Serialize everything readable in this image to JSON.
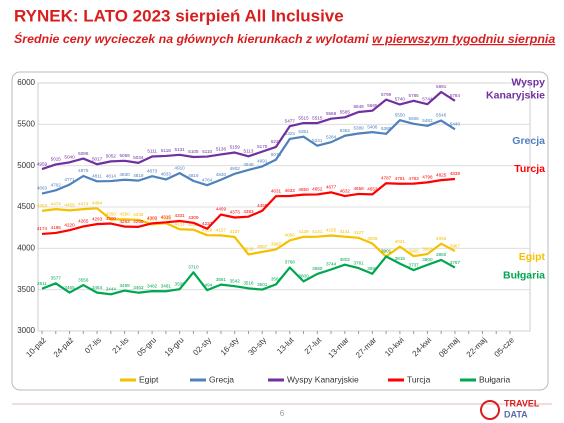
{
  "chart_data": {
    "type": "line",
    "title": "RYNEK: LATO 2023 sierpień All Inclusive",
    "subtitle": "Średnie ceny wycieczek na głównych kierunkach z wylotami ",
    "subtitle_emphasis": "w pierwszym tygodniu sierpnia",
    "categories": [
      "10-paź",
      null,
      "24-paź",
      null,
      "07-lis",
      null,
      "21-lis",
      null,
      "05-gru",
      null,
      "19-gru",
      null,
      "02-sty",
      null,
      "16-sty",
      null,
      "30-sty",
      null,
      "13-lut",
      null,
      "27-lut",
      null,
      "13-mar",
      null,
      "27-mar",
      null,
      "10-kwi",
      null,
      "24-kwi",
      null,
      "08-maj",
      null,
      "22-maj",
      null,
      "05-cze"
    ],
    "series": [
      {
        "name": "Egipt",
        "color": "#f5c000",
        "values": [
          4453,
          4474,
          4459,
          4474,
          4484,
          4350,
          4350,
          4345,
          4291,
          4305,
          4231,
          4225,
          4159,
          4157,
          4137,
          3926,
          3957,
          3987,
          4096,
          4139,
          4141,
          4155,
          4141,
          4127,
          4058,
          3901,
          4021,
          3905,
          3931,
          4056,
          3967,
          null,
          null,
          null,
          null
        ]
      },
      {
        "name": "Grecja",
        "color": "#4f81bd",
        "values": [
          4663,
          4702,
          4771,
          4875,
          4811,
          4814,
          4830,
          4819,
          4873,
          4833,
          4910,
          4816,
          4764,
          4830,
          4902,
          4948,
          4991,
          5073,
          5323,
          5351,
          5241,
          5284,
          5362,
          5389,
          5406,
          5385,
          5550,
          5506,
          5482,
          5546,
          5440,
          null,
          null,
          null,
          null
        ]
      },
      {
        "name": "Wyspy Kanaryjskie",
        "color": "#7030a0",
        "values": [
          4959,
          5015,
          5040,
          5086,
          5017,
          5052,
          5059,
          5034,
          5111,
          5118,
          5131,
          5105,
          5110,
          5136,
          5159,
          5113,
          5170,
          5227,
          5477,
          5515,
          5515,
          5568,
          5585,
          5649,
          5665,
          5799,
          5740,
          5785,
          5744,
          5891,
          5784,
          null,
          null,
          null,
          null
        ]
      },
      {
        "name": "Turcja",
        "color": "#ff0000",
        "values": [
          4174,
          4186,
          4220,
          4265,
          4293,
          4300,
          4263,
          4260,
          4303,
          4315,
          4331,
          4309,
          4237,
          4409,
          4373,
          4383,
          4455,
          4631,
          4633,
          4650,
          4652,
          4677,
          4632,
          4658,
          4653,
          4787,
          4781,
          4783,
          4798,
          4825,
          4839,
          null,
          null,
          null,
          null
        ]
      },
      {
        "name": "Bułgaria",
        "color": "#00a650",
        "values": [
          3511,
          3577,
          3465,
          3556,
          3464,
          3444,
          3489,
          3463,
          3482,
          3481,
          3506,
          3710,
          3494,
          3561,
          3542,
          3516,
          3501,
          3564,
          3768,
          3600,
          3690,
          3744,
          3802,
          3761,
          3693,
          3901,
          3815,
          3737,
          3800,
          3860,
          3767,
          null,
          null,
          null,
          null
        ]
      }
    ],
    "annotations": [
      "Egipt",
      "Grecja",
      "Wyspy",
      "Kanaryjskie",
      "Turcja",
      "Bułgaria"
    ],
    "ylim": [
      3000,
      6000
    ],
    "yticks": [
      3000,
      3500,
      4000,
      4500,
      5000,
      5500,
      6000
    ],
    "grid": true,
    "page_number": "6",
    "logo": [
      "TRAVEL",
      "DATA"
    ]
  }
}
